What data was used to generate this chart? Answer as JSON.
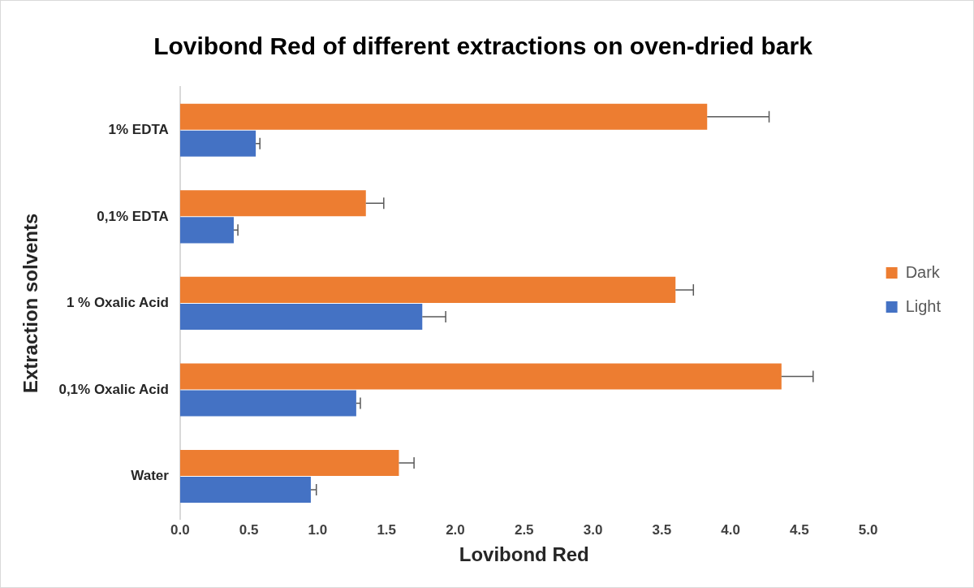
{
  "chart_data": {
    "type": "bar",
    "orientation": "horizontal",
    "title": "Lovibond Red of different extractions on oven-dried bark",
    "xlabel": "Lovibond Red",
    "ylabel": "Extraction solvents",
    "categories": [
      "1% EDTA",
      "0,1% EDTA",
      "1 % Oxalic Acid",
      "0,1% Oxalic Acid",
      "Water"
    ],
    "series": [
      {
        "name": "Dark",
        "color": "#ed7d31",
        "values": [
          3.83,
          1.35,
          3.6,
          4.37,
          1.59
        ],
        "errors": [
          [
            3.83,
            4.28
          ],
          [
            1.35,
            1.48
          ],
          [
            3.6,
            3.73
          ],
          [
            4.37,
            4.6
          ],
          [
            1.59,
            1.7
          ]
        ]
      },
      {
        "name": "Light",
        "color": "#4472c4",
        "values": [
          0.55,
          0.39,
          1.76,
          1.28,
          0.95
        ],
        "errors": [
          [
            0.55,
            0.58
          ],
          [
            0.39,
            0.42
          ],
          [
            1.76,
            1.93
          ],
          [
            1.28,
            1.31
          ],
          [
            0.95,
            0.99
          ]
        ]
      }
    ],
    "xlim": [
      0,
      5
    ],
    "xticks": [
      {
        "value": 0,
        "label": "0.0"
      },
      {
        "value": 0.5,
        "label": "0.5"
      },
      {
        "value": 1,
        "label": "1.0"
      },
      {
        "value": 1.5,
        "label": "1.5"
      },
      {
        "value": 2,
        "label": "2.0"
      },
      {
        "value": 2.5,
        "label": "2.5"
      },
      {
        "value": 3,
        "label": "3.0"
      },
      {
        "value": 3.5,
        "label": "3.5"
      },
      {
        "value": 4,
        "label": "4.0"
      },
      {
        "value": 4.5,
        "label": "4.5"
      },
      {
        "value": 5,
        "label": "5.0"
      }
    ],
    "legend": "right"
  }
}
